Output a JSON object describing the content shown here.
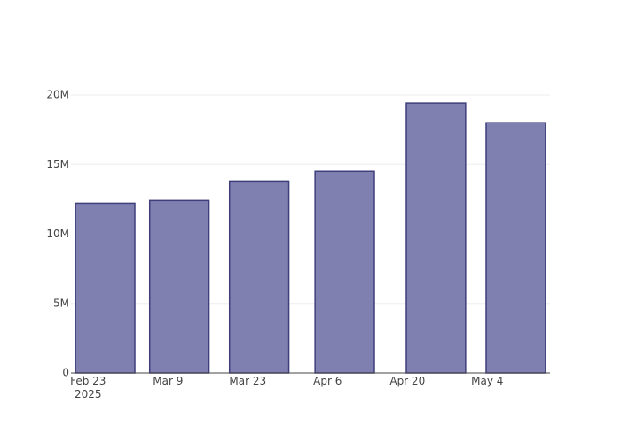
{
  "chart_data": {
    "type": "bar",
    "x": [
      "2025-02-26",
      "2025-03-11",
      "2025-03-25",
      "2025-04-09",
      "2025-04-25",
      "2025-05-09"
    ],
    "values": [
      12180000,
      12440000,
      13780000,
      14490000,
      19420000,
      18010000
    ],
    "color": "#7f7fb0",
    "edge_color": "#3f3f7c",
    "xlim": [
      "2025-02-20",
      "2025-05-15"
    ],
    "xticks": [
      {
        "value": "2025-02-23",
        "label": "Feb 23\n2025"
      },
      {
        "value": "2025-03-09",
        "label": "Mar 9"
      },
      {
        "value": "2025-03-23",
        "label": "Mar 23"
      },
      {
        "value": "2025-04-06",
        "label": "Apr 6"
      },
      {
        "value": "2025-04-20",
        "label": "Apr 20"
      },
      {
        "value": "2025-05-04",
        "label": "May 4"
      }
    ],
    "ylim": [
      0,
      20450000
    ],
    "yticks": [
      0,
      {
        "value": 5000000,
        "label": "5M"
      },
      {
        "value": 10000000,
        "label": "10M"
      },
      {
        "value": 15000000,
        "label": "15M"
      },
      {
        "value": 20000000,
        "label": "20M"
      }
    ],
    "grid": true
  }
}
